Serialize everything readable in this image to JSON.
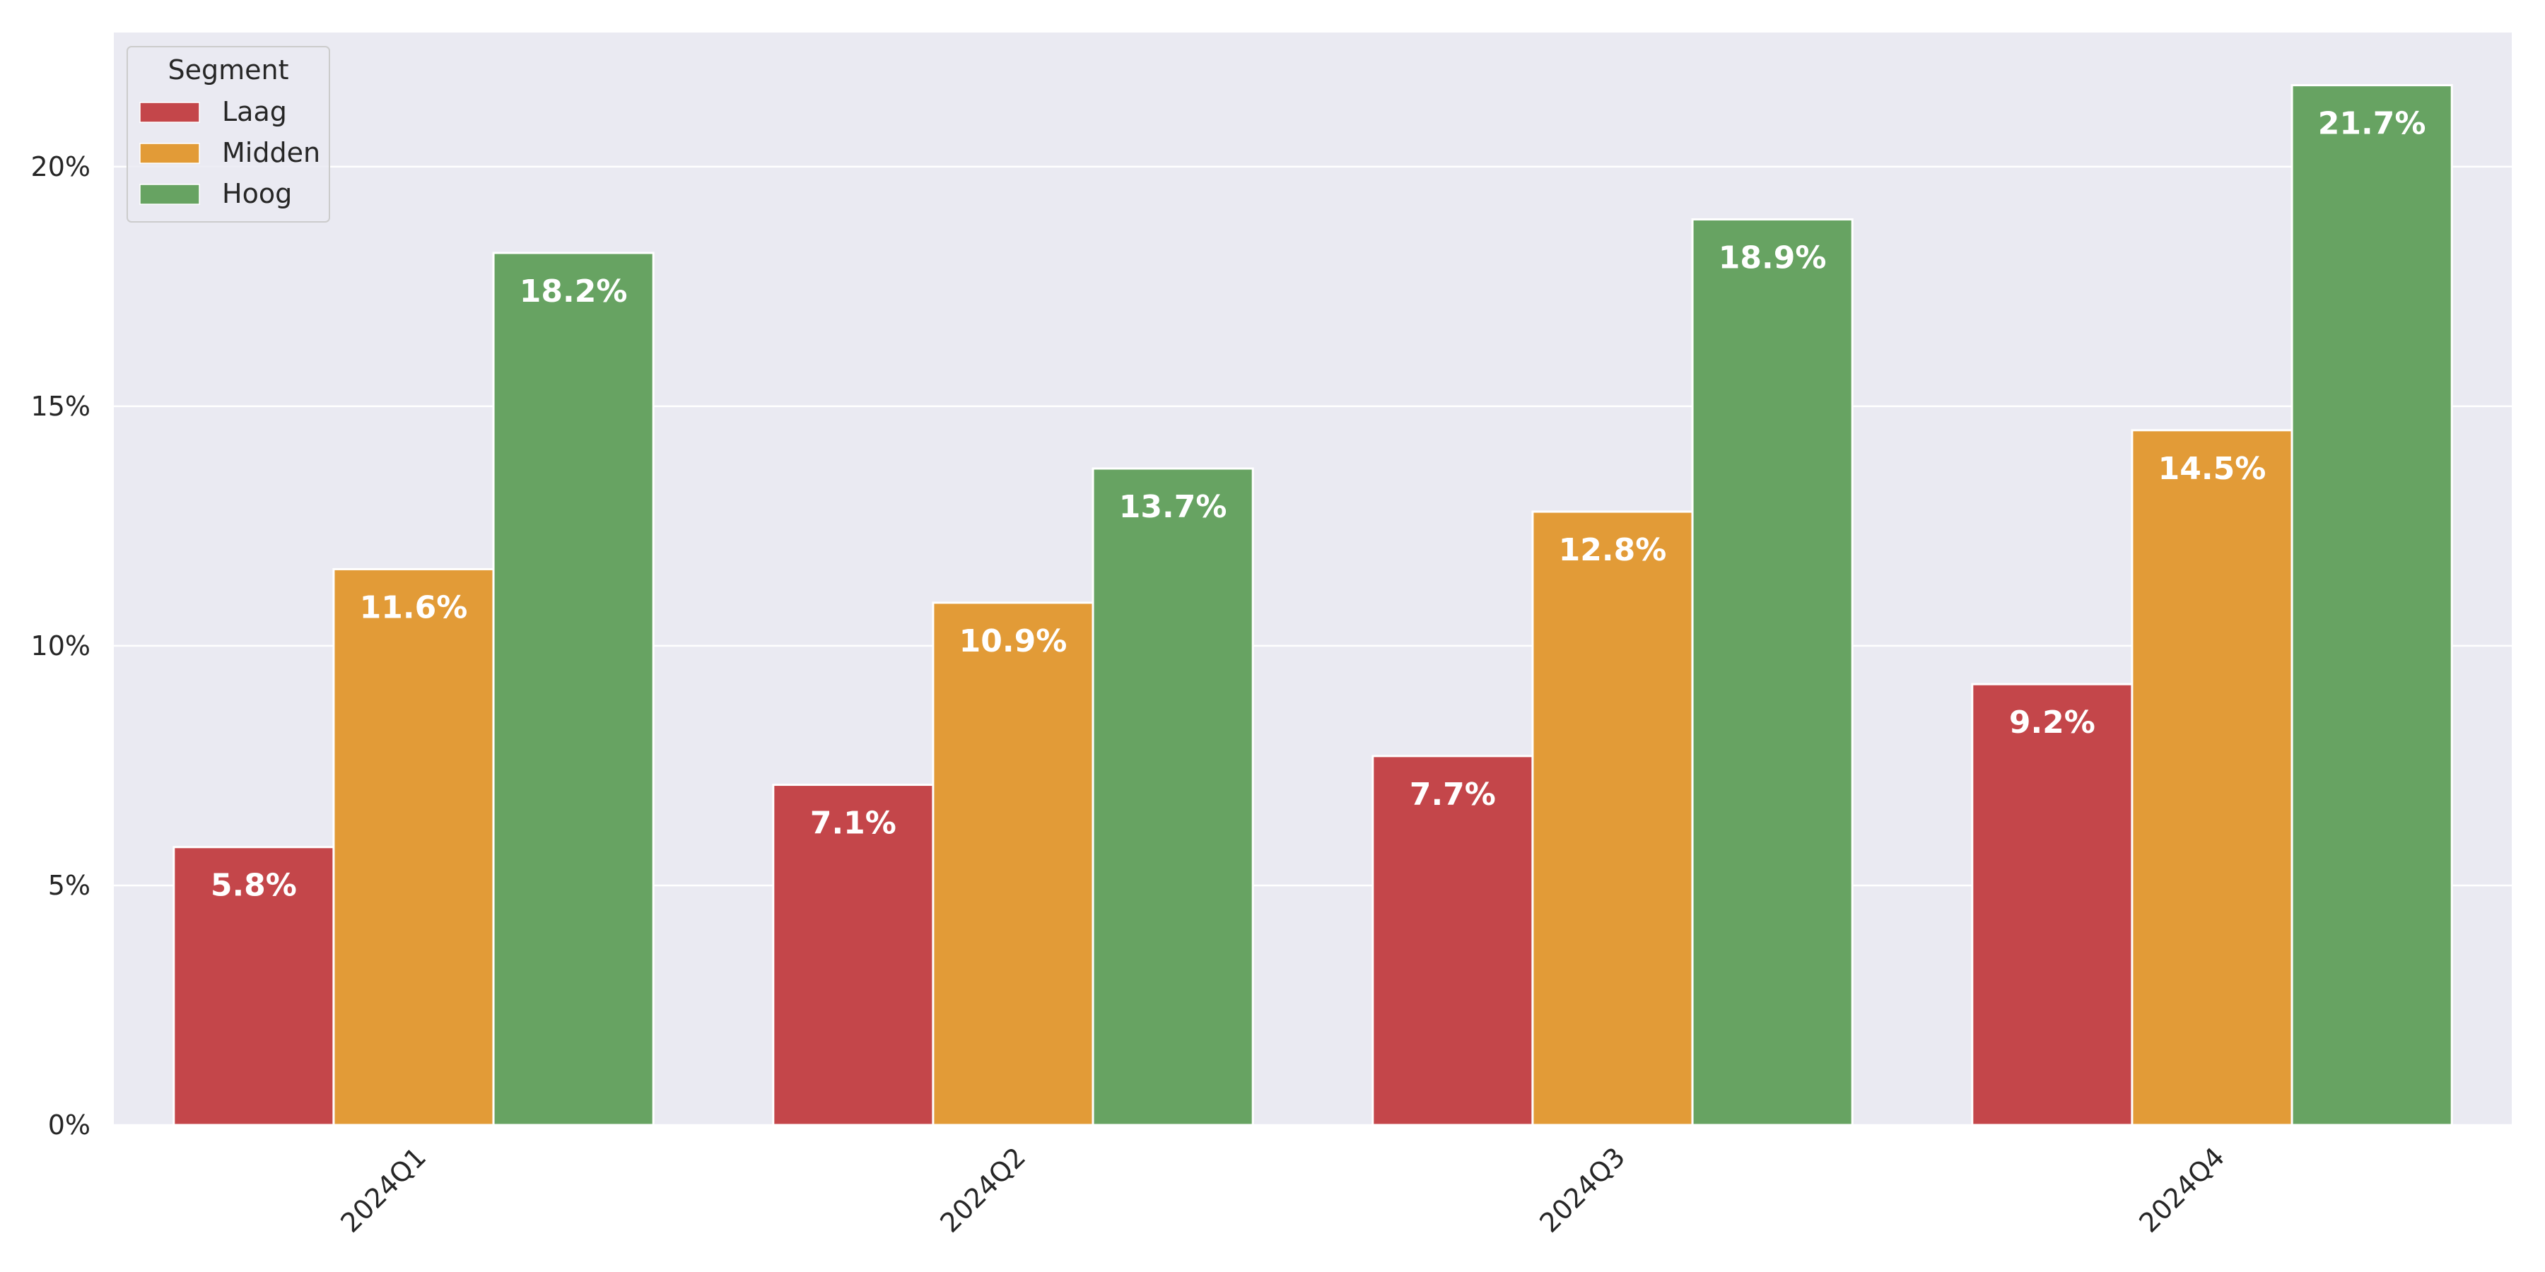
{
  "chart_data": {
    "type": "bar",
    "title": "",
    "xlabel": "",
    "ylabel": "",
    "categories": [
      "2024Q1",
      "2024Q2",
      "2024Q3",
      "2024Q4"
    ],
    "series": [
      {
        "name": "Laag",
        "color": "#C4464A",
        "values": [
          5.8,
          7.1,
          7.7,
          9.2
        ],
        "labels": [
          "5.8%",
          "7.1%",
          "7.7%",
          "9.2%"
        ]
      },
      {
        "name": "Midden",
        "color": "#E29B37",
        "values": [
          11.6,
          10.9,
          12.8,
          14.5
        ],
        "labels": [
          "11.6%",
          "10.9%",
          "12.8%",
          "14.5%"
        ]
      },
      {
        "name": "Hoog",
        "color": "#67A362",
        "values": [
          18.2,
          13.7,
          18.9,
          21.7
        ],
        "labels": [
          "18.2%",
          "13.7%",
          "18.9%",
          "21.7%"
        ]
      }
    ],
    "ylim": [
      0,
      22.8
    ],
    "yticks": [
      0,
      5,
      10,
      15,
      20
    ],
    "ytick_labels": [
      "0%",
      "5%",
      "10%",
      "15%",
      "20%"
    ],
    "grid": true,
    "legend": {
      "title": "Segment",
      "placement": "top-left"
    },
    "colors": {
      "background": "#EAEAF2",
      "grid": "#FFFFFF"
    }
  }
}
